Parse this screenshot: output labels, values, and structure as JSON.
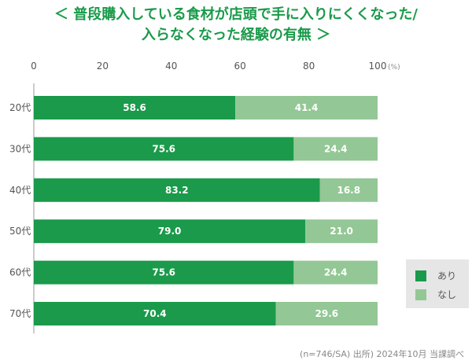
{
  "title": {
    "line1": "＜ 普段購入している食材が店頭で手に入りにくくなった/",
    "line2": "入らなくなった経験の有無 ＞"
  },
  "chart_data": {
    "type": "bar",
    "orientation": "horizontal",
    "stacked": true,
    "categories": [
      "20代",
      "30代",
      "40代",
      "50代",
      "60代",
      "70代"
    ],
    "series": [
      {
        "name": "あり",
        "color": "#1a9a4a",
        "values": [
          58.6,
          75.6,
          83.2,
          79.0,
          75.6,
          70.4
        ]
      },
      {
        "name": "なし",
        "color": "#93c795",
        "values": [
          41.4,
          24.4,
          16.8,
          21.0,
          24.4,
          29.6
        ]
      }
    ],
    "xlim": [
      0,
      100
    ],
    "xticks": [
      0,
      20,
      40,
      60,
      80,
      100
    ],
    "unit": "(%)",
    "grid": false,
    "legend_position": "bottom-right"
  },
  "note": "(n=746/SA) 出所) 2024年10月 当課調べ"
}
